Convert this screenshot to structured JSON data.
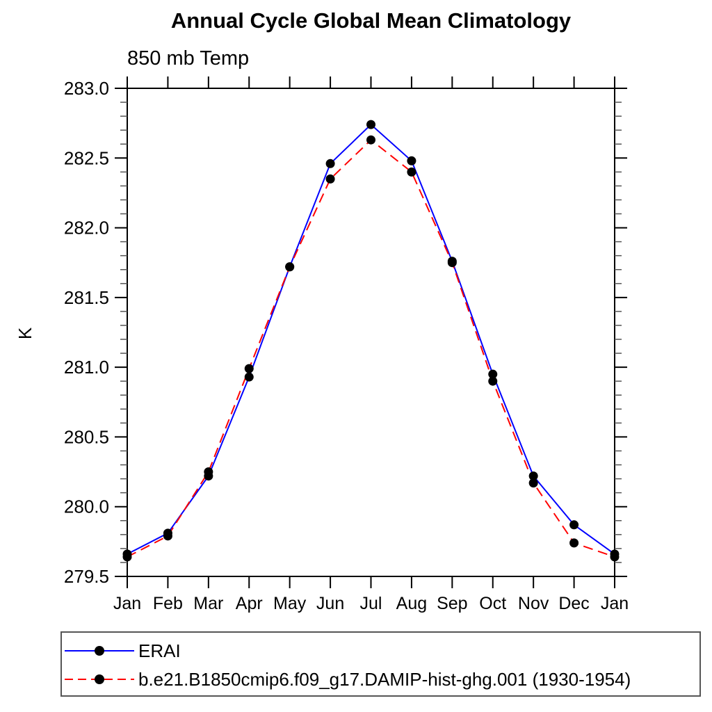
{
  "chart_data": {
    "type": "line",
    "title": "Annual Cycle Global Mean Climatology",
    "subtitle": "850 mb Temp",
    "ylabel": "K",
    "xlabel": "",
    "grid": false,
    "legend_position": "bottom-left",
    "categories": [
      "Jan",
      "Feb",
      "Mar",
      "Apr",
      "May",
      "Jun",
      "Jul",
      "Aug",
      "Sep",
      "Oct",
      "Nov",
      "Dec",
      "Jan"
    ],
    "ylim": [
      279.5,
      283.0
    ],
    "ytick_step": 0.5,
    "ytick_minor_step": 0.1,
    "ytick_labels": [
      "279.5",
      "280.0",
      "280.5",
      "281.0",
      "281.5",
      "282.0",
      "282.5",
      "283.0"
    ],
    "axis_color": "#000000",
    "marker_shape": "filled-circle",
    "series": [
      {
        "name": "ERAI",
        "color": "#0000ff",
        "line_style": "solid",
        "marker_color": "#000000",
        "values": [
          279.66,
          279.81,
          280.22,
          280.93,
          281.72,
          282.46,
          282.74,
          282.48,
          281.76,
          280.95,
          280.22,
          279.87,
          279.66
        ]
      },
      {
        "name": "b.e21.B1850cmip6.f09_g17.DAMIP-hist-ghg.001 (1930-1954)",
        "color": "#ff0000",
        "line_style": "dashed",
        "marker_color": "#000000",
        "values": [
          279.64,
          279.79,
          280.25,
          280.99,
          281.72,
          282.35,
          282.63,
          282.4,
          281.75,
          280.9,
          280.17,
          279.74,
          279.64
        ]
      }
    ]
  }
}
